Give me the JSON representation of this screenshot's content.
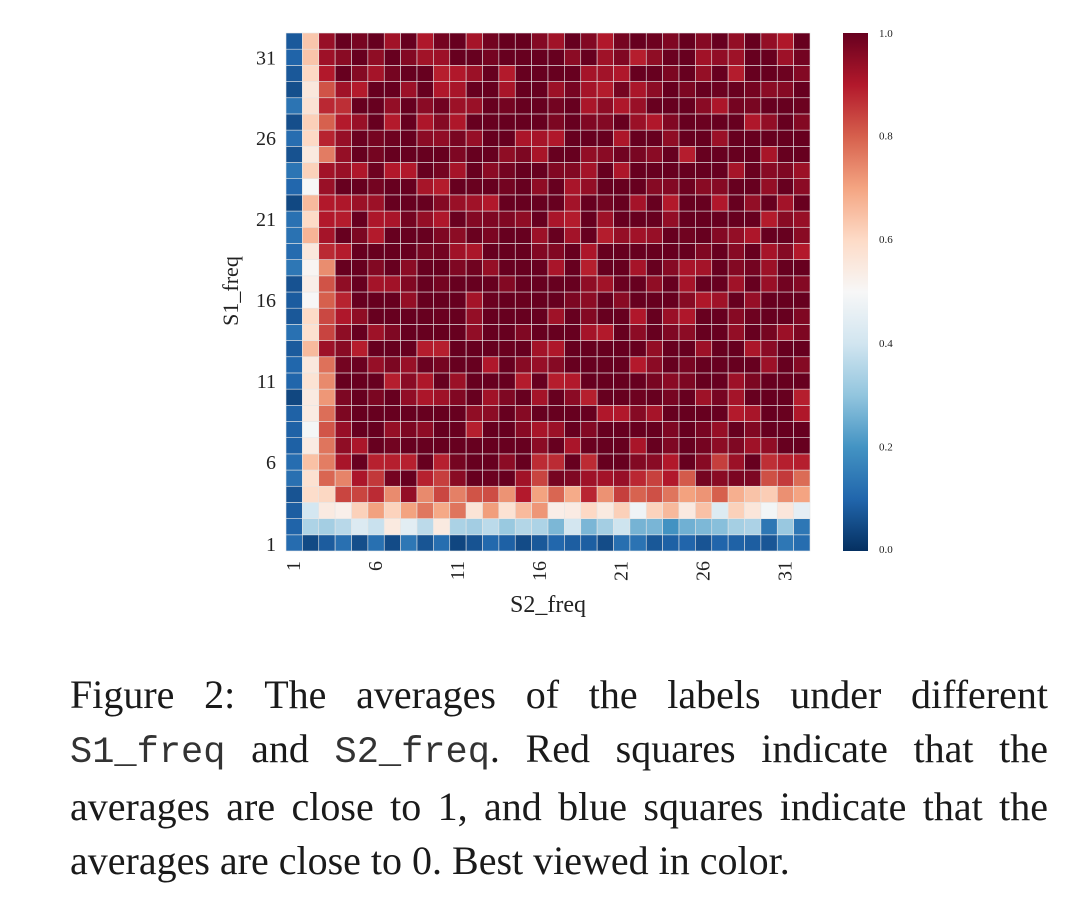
{
  "chart_data": {
    "type": "heatmap",
    "title": "",
    "xlabel": "S2_freq",
    "ylabel": "S1_freq",
    "x_range": [
      1,
      32
    ],
    "y_range": [
      1,
      32
    ],
    "x_ticks": [
      "1",
      "6",
      "11",
      "16",
      "21",
      "26",
      "31"
    ],
    "y_ticks": [
      "1",
      "6",
      "11",
      "16",
      "21",
      "26",
      "31"
    ],
    "colorbar": {
      "min": 0.0,
      "max": 1.0,
      "ticks": [
        "0.0",
        "0.2",
        "0.4",
        "0.6",
        "0.8",
        "1.0"
      ],
      "colormap": "RdBu_r",
      "colors": [
        "#053061",
        "#2166ac",
        "#4393c3",
        "#92c5de",
        "#d1e5f0",
        "#f7f7f7",
        "#fddbc7",
        "#f4a582",
        "#d6604d",
        "#b2182b",
        "#67001f"
      ]
    },
    "grid_color": "#e6e6e6",
    "description_note": "Cell values are label averages in [0,1]; row 1 and column 1 near 0, values rise toward 1 with both frequencies."
  },
  "caption": {
    "prefix": "Figure 2:  The averages of the labels under different",
    "code1": "S1_freq",
    "middle1": " and ",
    "code2": "S2_freq",
    "suffix": ". Red squares indicate that the averages are close to 1, and blue squares indicate that the averages are close to 0. Best viewed in color."
  }
}
